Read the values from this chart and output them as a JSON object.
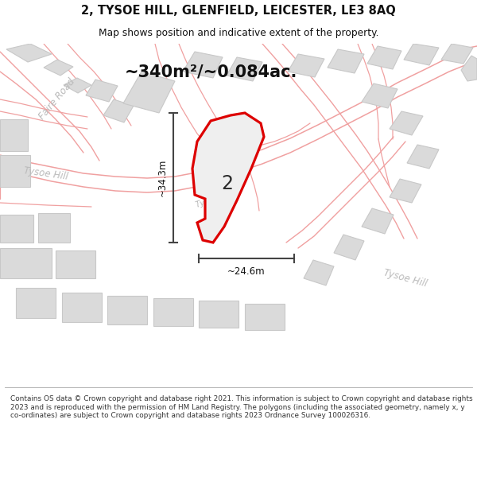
{
  "title_line1": "2, TYSOE HILL, GLENFIELD, LEICESTER, LE3 8AQ",
  "title_line2": "Map shows position and indicative extent of the property.",
  "area_text": "~340m²/~0.084ac.",
  "dim_height": "~34.3m",
  "dim_width": "~24.6m",
  "label_number": "2",
  "footer_text": "Contains OS data © Crown copyright and database right 2021. This information is subject to Crown copyright and database rights 2023 and is reproduced with the permission of HM Land Registry. The polygons (including the associated geometry, namely x, y co-ordinates) are subject to Crown copyright and database rights 2023 Ordnance Survey 100026316.",
  "map_bg": "#f9f9f9",
  "building_fill": "#dadada",
  "building_edge": "#c8c8c8",
  "parcel_line_color": "#f0a0a0",
  "highlight_fill": "#efefef",
  "highlight_edge": "#dd0000",
  "road_label_color": "#bbbbbb",
  "title_color": "#111111",
  "footer_color": "#333333",
  "dim_color": "#111111",
  "white": "#ffffff"
}
